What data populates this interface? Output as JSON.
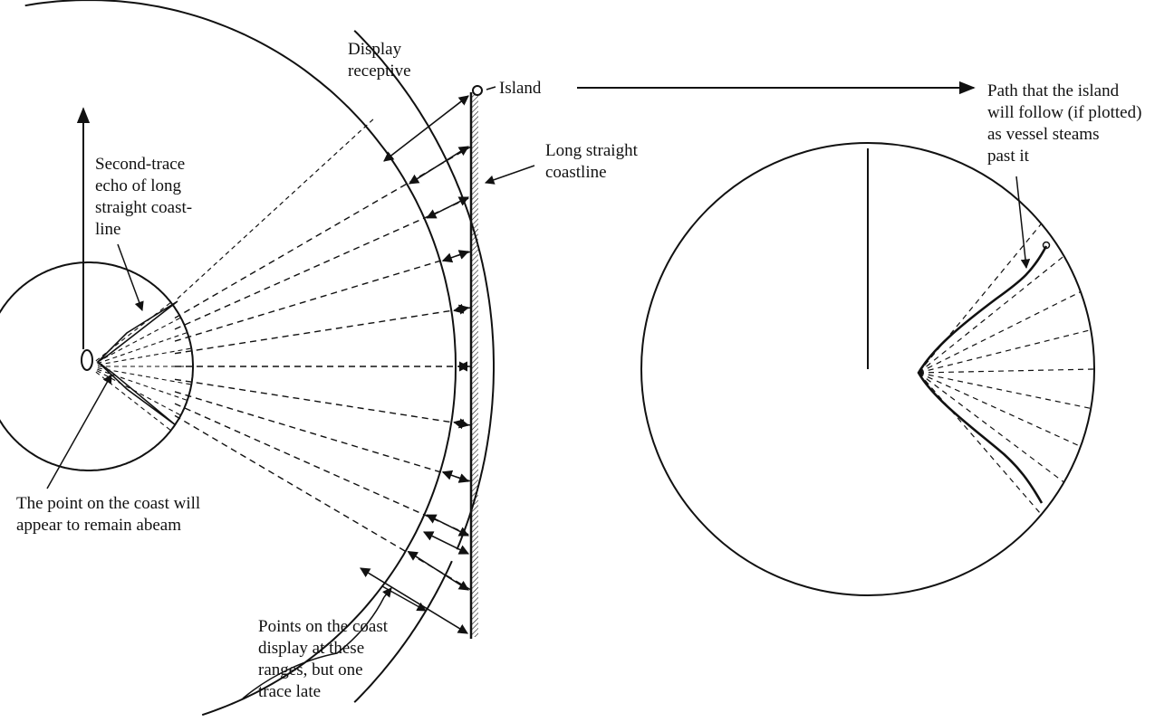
{
  "labels": {
    "display_receptive": [
      "Display",
      "receptive"
    ],
    "island": "Island",
    "path": [
      "Path that the island",
      "will follow (if plotted)",
      "as vessel steams",
      "past it"
    ],
    "coastline": [
      "Long straight",
      "coastline"
    ],
    "second_trace": [
      "Second-trace",
      "echo of long",
      "straight coast-",
      "line"
    ],
    "abeam": [
      "The point on the coast will",
      "appear to remain abeam"
    ],
    "points": [
      "Points on the coast",
      "display at these",
      "ranges, but one",
      "trace late"
    ]
  },
  "colors": {
    "ink": "#111111",
    "background": "#ffffff"
  }
}
